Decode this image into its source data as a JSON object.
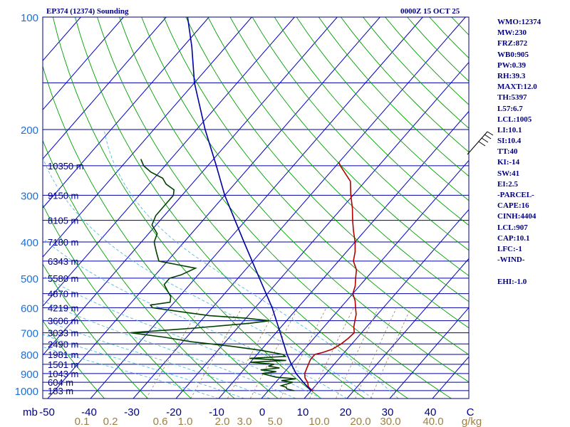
{
  "header": {
    "title": "EP374 (12374) Sounding",
    "time": "0000Z 15 OCT 25"
  },
  "indices": [
    "WMO:12374",
    "MW:230",
    "FRZ:872",
    "WB0:905",
    "PW:0.39",
    "RH:39.3",
    "MAXT:12.0",
    "TH:5397",
    "L57:6.7",
    "LCL:1005",
    "LI:10.1",
    "SI:10.4",
    "TT:40",
    "KI:-14",
    "SW:41",
    "EI:2.5",
    "-PARCEL-",
    "CAPE:16",
    "CINH:4404",
    "LCL:907",
    "CAP:10.1",
    "LFC:-1",
    "-WIND-",
    "",
    "EHI:-1.0"
  ],
  "colors": {
    "frame": "#000080",
    "isobar": "#0000a0",
    "isotherm": "#0000c8",
    "dry_adiabat": "#00a000",
    "moist_adiabat": "#55bbdd",
    "mixing_ratio": "#a08060",
    "temperature": "#b00000",
    "dewpoint": "#004000",
    "parcel": "#0000a0",
    "mixing_label": "#a08040"
  },
  "chart_data": {
    "type": "line",
    "pressure_ticks": [
      100,
      200,
      300,
      400,
      500,
      600,
      700,
      800,
      900,
      1000
    ],
    "pressure_unit": "mb",
    "temperature_ticks": [
      "-50",
      "-40",
      "-30",
      "-20",
      "-10",
      "0",
      "10",
      "20",
      "30",
      "40",
      "C"
    ],
    "mixing_ratio_ticks": [
      "0.1",
      "0.2",
      "0.6",
      "1.0",
      "2.0",
      "3.0",
      "5.0",
      "10.0",
      "20.0",
      "30.0",
      "40.0",
      "g/kg"
    ],
    "height_labels": [
      {
        "p": 250,
        "label": "10350 m"
      },
      {
        "p": 300,
        "label": "9150 m"
      },
      {
        "p": 350,
        "label": "8105 m"
      },
      {
        "p": 400,
        "label": "7180 m"
      },
      {
        "p": 450,
        "label": "6343 m"
      },
      {
        "p": 500,
        "label": "5580 m"
      },
      {
        "p": 550,
        "label": "4870 m"
      },
      {
        "p": 600,
        "label": "4219 m"
      },
      {
        "p": 650,
        "label": "3606 m"
      },
      {
        "p": 700,
        "label": "3033 m"
      },
      {
        "p": 750,
        "label": "2490 m"
      },
      {
        "p": 800,
        "label": "1981 m"
      },
      {
        "p": 850,
        "label": "1501 m"
      },
      {
        "p": 900,
        "label": "1043 m"
      },
      {
        "p": 950,
        "label": "604 m"
      },
      {
        "p": 1000,
        "label": "183 m"
      }
    ],
    "series": [
      {
        "key": "temperature",
        "points": [
          [
            1000,
            10.5
          ],
          [
            990,
            9.5
          ],
          [
            975,
            8.5
          ],
          [
            950,
            7.5
          ],
          [
            925,
            6
          ],
          [
            900,
            5
          ],
          [
            875,
            4.5
          ],
          [
            850,
            4
          ],
          [
            825,
            3.5
          ],
          [
            800,
            3.5
          ],
          [
            790,
            5
          ],
          [
            775,
            6.5
          ],
          [
            750,
            7.5
          ],
          [
            725,
            8
          ],
          [
            700,
            8.3
          ],
          [
            675,
            7
          ],
          [
            650,
            6
          ],
          [
            625,
            5
          ],
          [
            600,
            3.5
          ],
          [
            575,
            2
          ],
          [
            550,
            0
          ],
          [
            525,
            -1
          ],
          [
            500,
            -2.5
          ],
          [
            475,
            -4
          ],
          [
            450,
            -6.5
          ],
          [
            425,
            -8
          ],
          [
            400,
            -10
          ],
          [
            375,
            -12.5
          ],
          [
            350,
            -15
          ],
          [
            325,
            -17.5
          ],
          [
            300,
            -20.5
          ],
          [
            275,
            -23.5
          ],
          [
            250,
            -29
          ],
          [
            245,
            -30
          ]
        ]
      },
      {
        "key": "dewpoint",
        "points": [
          [
            1000,
            6
          ],
          [
            990,
            4
          ],
          [
            980,
            3.5
          ],
          [
            970,
            2
          ],
          [
            960,
            3
          ],
          [
            950,
            4
          ],
          [
            940,
            1
          ],
          [
            930,
            4
          ],
          [
            920,
            -1
          ],
          [
            910,
            -3
          ],
          [
            900,
            -5
          ],
          [
            890,
            -2
          ],
          [
            880,
            -6
          ],
          [
            870,
            -2
          ],
          [
            860,
            -5
          ],
          [
            850,
            -4
          ],
          [
            840,
            -10
          ],
          [
            830,
            -2
          ],
          [
            820,
            -11
          ],
          [
            810,
            -3
          ],
          [
            800,
            -4
          ],
          [
            780,
            -10
          ],
          [
            760,
            -18
          ],
          [
            740,
            -28
          ],
          [
            720,
            -35
          ],
          [
            700,
            -44
          ],
          [
            680,
            -30
          ],
          [
            660,
            -18
          ],
          [
            650,
            -14
          ],
          [
            640,
            -20
          ],
          [
            630,
            -29
          ],
          [
            620,
            -34
          ],
          [
            610,
            -39
          ],
          [
            600,
            -44
          ],
          [
            590,
            -45
          ],
          [
            580,
            -41
          ],
          [
            560,
            -42
          ],
          [
            540,
            -44
          ],
          [
            520,
            -46
          ],
          [
            500,
            -46
          ],
          [
            490,
            -44
          ],
          [
            470,
            -42
          ],
          [
            460,
            -47
          ],
          [
            450,
            -52
          ],
          [
            430,
            -54
          ],
          [
            410,
            -56
          ],
          [
            400,
            -57
          ],
          [
            380,
            -58
          ],
          [
            360,
            -61
          ],
          [
            340,
            -62
          ],
          [
            320,
            -62
          ],
          [
            300,
            -62
          ],
          [
            290,
            -63
          ],
          [
            280,
            -66
          ],
          [
            270,
            -68
          ],
          [
            260,
            -72
          ],
          [
            250,
            -75
          ],
          [
            240,
            -77
          ]
        ]
      },
      {
        "key": "parcel",
        "points": [
          [
            1000,
            10
          ],
          [
            950,
            6.5
          ],
          [
            900,
            3
          ],
          [
            850,
            0
          ],
          [
            800,
            -3
          ],
          [
            700,
            -9
          ],
          [
            600,
            -16
          ],
          [
            500,
            -25
          ],
          [
            400,
            -36
          ],
          [
            300,
            -50
          ],
          [
            250,
            -58
          ],
          [
            200,
            -68
          ],
          [
            150,
            -80
          ],
          [
            120,
            -88
          ],
          [
            100,
            -95
          ]
        ]
      }
    ]
  }
}
